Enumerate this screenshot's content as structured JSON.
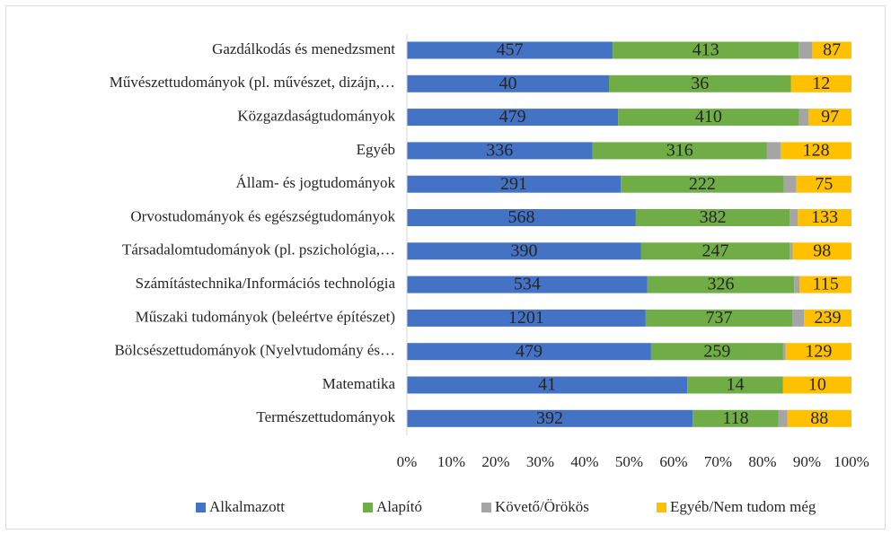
{
  "chart_data": {
    "type": "stacked_bar_100_horizontal",
    "categories": [
      "Gazdálkodás és menedzsment",
      "Művészettudományok (pl. művészet, dizájn,…",
      "Közgazdaságtudományok",
      "Egyéb",
      "Állam- és jogtudományok",
      "Orvostudományok és egészségtudományok",
      "Társadalomtudományok (pl. pszichológia,…",
      "Számítástechnika/Információs technológia",
      "Műszaki tudományok (beleértve építészet)",
      "Bölcsészettudományok (Nyelvtudomány és…",
      "Matematika",
      "Természettudományok"
    ],
    "series": [
      {
        "name": "Alkalmazott",
        "color": "#4472c4",
        "data_labels": true,
        "values": [
          457,
          40,
          479,
          336,
          291,
          568,
          390,
          534,
          1201,
          479,
          41,
          392
        ]
      },
      {
        "name": "Alapító",
        "color": "#70ad47",
        "data_labels": true,
        "values": [
          413,
          36,
          410,
          316,
          222,
          382,
          247,
          326,
          737,
          259,
          14,
          118
        ]
      },
      {
        "name": "Követő/Örökös",
        "color": "#a5a5a5",
        "data_labels": false,
        "values": [
          30,
          0,
          22,
          25,
          17,
          20,
          5,
          12,
          59,
          5,
          0,
          12
        ]
      },
      {
        "name": "Egyéb/Nem tudom még",
        "color": "#ffc000",
        "data_labels": true,
        "values": [
          87,
          12,
          97,
          128,
          75,
          133,
          98,
          115,
          239,
          129,
          10,
          88
        ]
      }
    ],
    "xlim": [
      0,
      100
    ],
    "xticks": [
      {
        "value": 0,
        "label": "0%"
      },
      {
        "value": 10,
        "label": "10%"
      },
      {
        "value": 20,
        "label": "20%"
      },
      {
        "value": 30,
        "label": "30%"
      },
      {
        "value": 40,
        "label": "40%"
      },
      {
        "value": 50,
        "label": "50%"
      },
      {
        "value": 60,
        "label": "60%"
      },
      {
        "value": 70,
        "label": "70%"
      },
      {
        "value": 80,
        "label": "80%"
      },
      {
        "value": 90,
        "label": "90%"
      },
      {
        "value": 100,
        "label": "100%"
      }
    ],
    "grid": false,
    "legend": "bottom"
  }
}
